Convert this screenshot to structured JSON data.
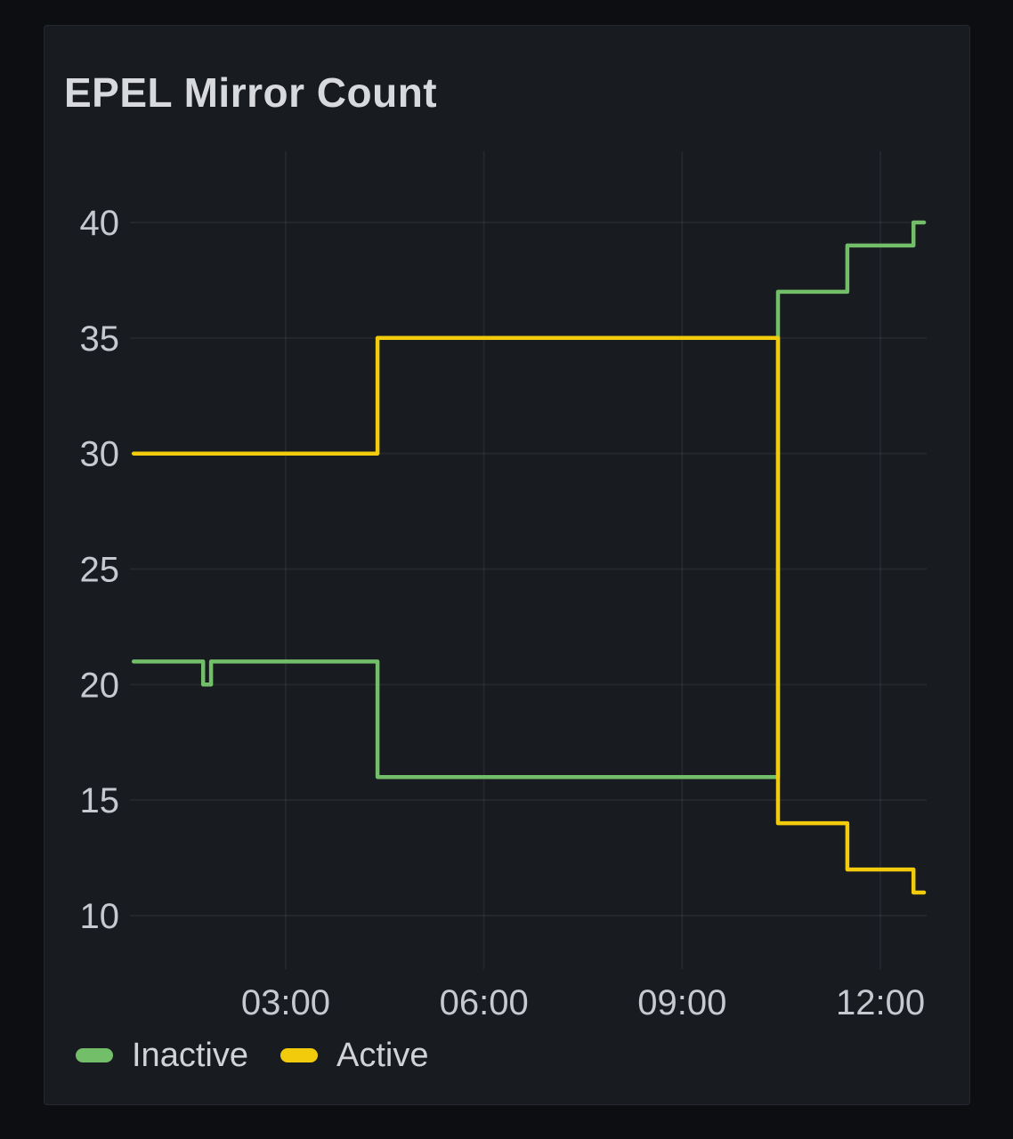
{
  "panel": {
    "title": "EPEL Mirror Count"
  },
  "colors": {
    "page_bg": "#0D0E12",
    "panel_bg": "#181B1F",
    "panel_border": "#25282E",
    "grid": "rgba(204,204,220,0.07)",
    "tick_text": "#C8C9D0",
    "title_text": "#D8D9DD",
    "legend_text": "#D2D3D8",
    "series_green": "#73BF69",
    "series_yellow": "#F2CC0C"
  },
  "chart_data": {
    "type": "line",
    "title": "EPEL Mirror Count",
    "interpolation": "step",
    "grid": true,
    "legend_position": "bottom",
    "x_axis": {
      "tick_labels": [
        "03:00",
        "06:00",
        "09:00",
        "12:00"
      ],
      "tick_hours": [
        3,
        6,
        9,
        12
      ],
      "domain_hours": [
        0.643,
        12.7
      ]
    },
    "y_axis": {
      "ticks": [
        10,
        15,
        20,
        25,
        30,
        35,
        40
      ],
      "domain": [
        7.69,
        43.08
      ]
    },
    "series": [
      {
        "name": "Inactive",
        "color": "#73BF69",
        "points_hours_value": [
          [
            0.7,
            21
          ],
          [
            1.75,
            21
          ],
          [
            1.75,
            20
          ],
          [
            1.87,
            20
          ],
          [
            1.87,
            21
          ],
          [
            4.39,
            21
          ],
          [
            4.39,
            16
          ],
          [
            10.45,
            16
          ],
          [
            10.45,
            37
          ],
          [
            11.5,
            37
          ],
          [
            11.5,
            39
          ],
          [
            12.5,
            39
          ],
          [
            12.5,
            40
          ],
          [
            12.66,
            40
          ]
        ]
      },
      {
        "name": "Active",
        "color": "#F2CC0C",
        "points_hours_value": [
          [
            0.7,
            30
          ],
          [
            4.39,
            30
          ],
          [
            4.39,
            35
          ],
          [
            10.45,
            35
          ],
          [
            10.45,
            14
          ],
          [
            11.5,
            14
          ],
          [
            11.5,
            12
          ],
          [
            12.5,
            12
          ],
          [
            12.5,
            11
          ],
          [
            12.66,
            11
          ]
        ]
      }
    ],
    "events": [
      {
        "time": "~01:45",
        "desc": "Inactive dips 21 to 20 and back to 21"
      },
      {
        "time": "~04:23",
        "desc": "Active 30 to 35, Inactive 21 to 16"
      },
      {
        "time": "~10:27",
        "desc": "Active 35 to 14, Inactive 16 to 37"
      },
      {
        "time": "~11:30",
        "desc": "Active 14 to 12, Inactive 37 to 39"
      },
      {
        "time": "~12:30",
        "desc": "Active 12 to 11, Inactive 39 to 40"
      }
    ]
  },
  "legend": {
    "items": [
      {
        "label": "Inactive",
        "color": "#73BF69"
      },
      {
        "label": "Active",
        "color": "#F2CC0C"
      }
    ]
  }
}
